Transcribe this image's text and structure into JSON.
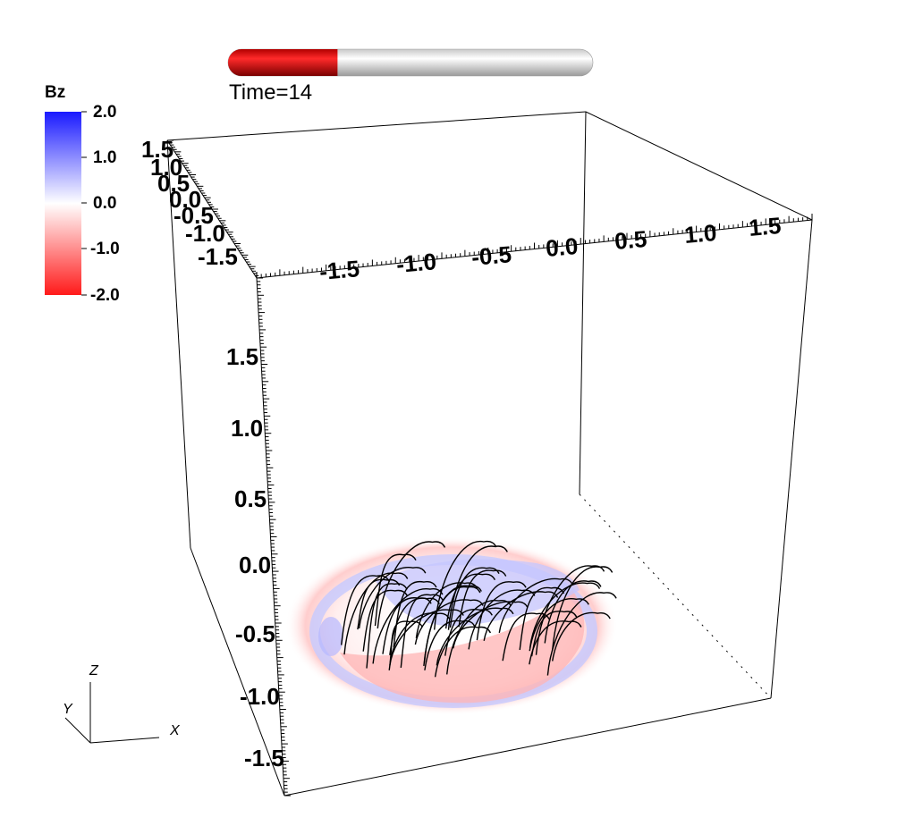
{
  "colorbar": {
    "title": "Bz",
    "labels": [
      "2.0",
      "1.0",
      "0.0",
      "-1.0",
      "-2.0"
    ],
    "colors": {
      "high": "#1a1aff",
      "mid": "#ffffff",
      "low": "#ff1a1a"
    }
  },
  "time": {
    "label": "Time=14",
    "progress": 0.3,
    "fill_color": "#d40000"
  },
  "axes": {
    "x_ticks": [
      "-1.5",
      "-1.0",
      "-0.5",
      "0.0",
      "0.5",
      "1.0",
      "1.5"
    ],
    "y_ticks": [
      "1.5",
      "1.0",
      "0.5",
      "0.0",
      "-0.5",
      "-1.0",
      "-1.5"
    ],
    "z_ticks": [
      "1.5",
      "1.0",
      "0.5",
      "0.0",
      "-0.5",
      "-1.0",
      "-1.5"
    ]
  },
  "orientation": {
    "z": "Z",
    "y": "Y",
    "x": "X"
  },
  "field_line_color": "#000000"
}
